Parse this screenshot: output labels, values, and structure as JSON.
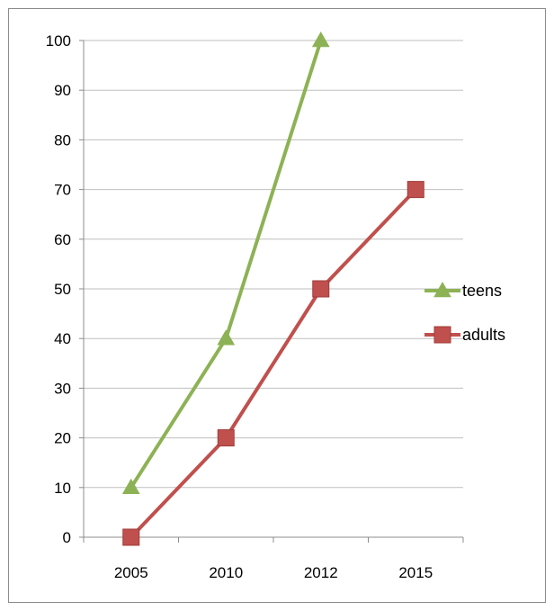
{
  "chart_data": {
    "type": "line",
    "categories": [
      "2005",
      "2010",
      "2012",
      "2015"
    ],
    "series": [
      {
        "name": "teens",
        "values": [
          10,
          40,
          100,
          null
        ],
        "color": "#8db255",
        "marker": "triangle"
      },
      {
        "name": "adults",
        "values": [
          0,
          20,
          50,
          70
        ],
        "color": "#c0504d",
        "marker": "square"
      }
    ],
    "ylim": [
      0,
      100
    ],
    "yticks": [
      0,
      10,
      20,
      30,
      40,
      50,
      60,
      70,
      80,
      90,
      100
    ],
    "grid": true,
    "legend_position": "right"
  }
}
